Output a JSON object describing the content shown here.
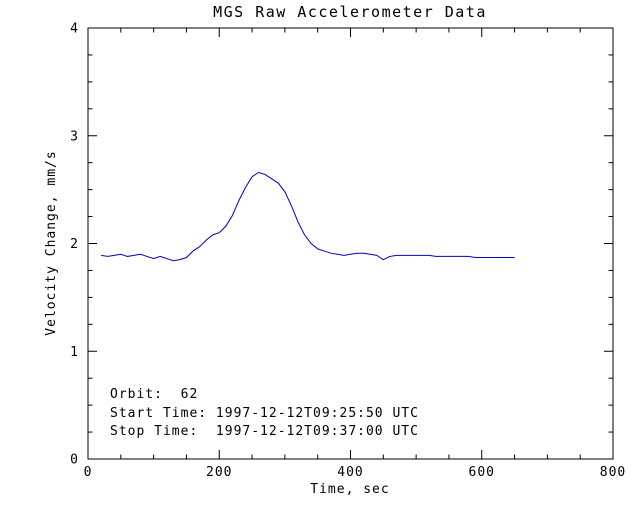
{
  "chart_data": {
    "type": "line",
    "title": "MGS Raw Accelerometer Data",
    "xlabel": "Time, sec",
    "ylabel": "Velocity Change, mm/s",
    "xlim": [
      0,
      800
    ],
    "ylim": [
      0,
      4
    ],
    "xticks": [
      0,
      200,
      400,
      600,
      800
    ],
    "xtick_labels": [
      "0",
      "200",
      "400",
      "600",
      "800"
    ],
    "yticks": [
      0,
      1,
      2,
      3,
      4
    ],
    "ytick_labels": [
      "0",
      "1",
      "2",
      "3",
      "4"
    ],
    "x_minor": 50,
    "y_minor": 0.25,
    "grid": false,
    "legend": "none",
    "background": "#ffffff",
    "axis_color": "#000000",
    "line_color": "#0000cc",
    "annotations": [
      "Orbit:  62",
      "Start Time: 1997-12-12T09:25:50 UTC",
      "Stop Time:  1997-12-12T09:37:00 UTC"
    ],
    "series": [
      {
        "name": "velocity_change",
        "x": [
          20,
          30,
          40,
          50,
          60,
          70,
          80,
          90,
          100,
          110,
          120,
          130,
          140,
          150,
          160,
          170,
          180,
          190,
          200,
          210,
          220,
          230,
          240,
          250,
          260,
          270,
          280,
          290,
          300,
          310,
          320,
          330,
          340,
          350,
          360,
          370,
          380,
          390,
          400,
          410,
          420,
          430,
          440,
          450,
          460,
          470,
          480,
          490,
          500,
          510,
          520,
          530,
          540,
          550,
          560,
          570,
          580,
          590,
          600,
          610,
          620,
          630,
          640,
          650
        ],
        "y": [
          1.89,
          1.88,
          1.89,
          1.9,
          1.88,
          1.89,
          1.9,
          1.88,
          1.86,
          1.88,
          1.86,
          1.84,
          1.85,
          1.87,
          1.93,
          1.97,
          2.03,
          2.08,
          2.1,
          2.16,
          2.26,
          2.4,
          2.52,
          2.62,
          2.66,
          2.64,
          2.6,
          2.56,
          2.48,
          2.35,
          2.2,
          2.08,
          2.0,
          1.95,
          1.93,
          1.91,
          1.9,
          1.89,
          1.9,
          1.91,
          1.91,
          1.9,
          1.89,
          1.85,
          1.88,
          1.89,
          1.89,
          1.89,
          1.89,
          1.89,
          1.89,
          1.88,
          1.88,
          1.88,
          1.88,
          1.88,
          1.88,
          1.87,
          1.87,
          1.87,
          1.87,
          1.87,
          1.87,
          1.87
        ]
      }
    ]
  }
}
